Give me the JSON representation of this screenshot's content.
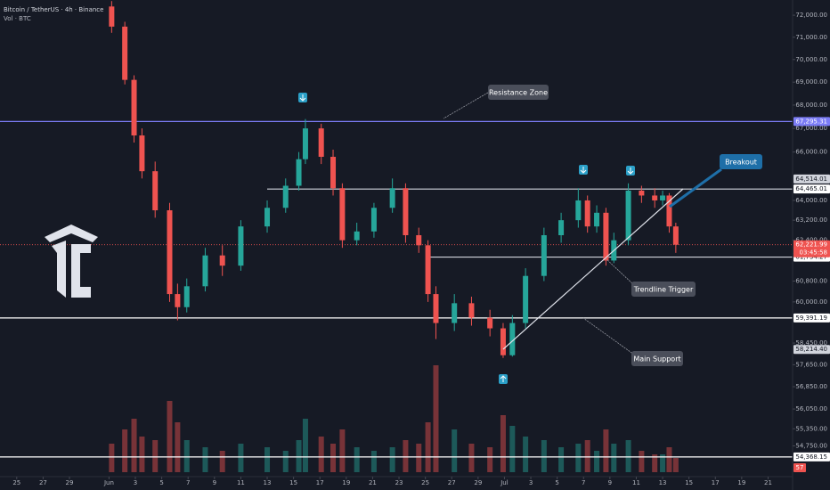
{
  "chart_data": {
    "type": "candlestick",
    "title": "Bitcoin / TetherUS · 4h · Binance",
    "subtitle": "Vol · BTC",
    "log_scale": true,
    "ylim": [
      53690,
      72700
    ],
    "yticks": [
      {
        "value": 72000,
        "label": "72,000.00"
      },
      {
        "value": 71000,
        "label": "71,000.00"
      },
      {
        "value": 70000,
        "label": "70,000.00"
      },
      {
        "value": 69000,
        "label": "69,000.00"
      },
      {
        "value": 68000,
        "label": "68,000.00"
      },
      {
        "value": 67000,
        "label": "67,000.00"
      },
      {
        "value": 66000,
        "label": "66,000.00"
      },
      {
        "value": 64000,
        "label": "64,000.00"
      },
      {
        "value": 63200,
        "label": "63,200.00"
      },
      {
        "value": 62400,
        "label": "62,400.00"
      },
      {
        "value": 60800,
        "label": "60,800.00"
      },
      {
        "value": 60000,
        "label": "60,000.00"
      },
      {
        "value": 58450,
        "label": "58,450.00"
      },
      {
        "value": 57650,
        "label": "57,650.00"
      },
      {
        "value": 56850,
        "label": "56,850.00"
      },
      {
        "value": 56050,
        "label": "56,050.00"
      },
      {
        "value": 55350,
        "label": "55,350.00"
      },
      {
        "value": 54750,
        "label": "54,750.00"
      }
    ],
    "xlim": [
      -0.27,
      59.86
    ],
    "xticks": [
      {
        "value": 1,
        "label": "25"
      },
      {
        "value": 3,
        "label": "27"
      },
      {
        "value": 5,
        "label": "29"
      },
      {
        "value": 8,
        "label": "Jun"
      },
      {
        "value": 10,
        "label": "3"
      },
      {
        "value": 12,
        "label": "5"
      },
      {
        "value": 14,
        "label": "7"
      },
      {
        "value": 16,
        "label": "9"
      },
      {
        "value": 18,
        "label": "11"
      },
      {
        "value": 20,
        "label": "13"
      },
      {
        "value": 22,
        "label": "15"
      },
      {
        "value": 24,
        "label": "17"
      },
      {
        "value": 26,
        "label": "19"
      },
      {
        "value": 28,
        "label": "21"
      },
      {
        "value": 30,
        "label": "23"
      },
      {
        "value": 32,
        "label": "25"
      },
      {
        "value": 34,
        "label": "27"
      },
      {
        "value": 36,
        "label": "29"
      },
      {
        "value": 38,
        "label": "Jul"
      },
      {
        "value": 40,
        "label": "3"
      },
      {
        "value": 42,
        "label": "5"
      },
      {
        "value": 44,
        "label": "7"
      },
      {
        "value": 46,
        "label": "9"
      },
      {
        "value": 48,
        "label": "11"
      },
      {
        "value": 50,
        "label": "13"
      },
      {
        "value": 52,
        "label": "15"
      },
      {
        "value": 54,
        "label": "17"
      },
      {
        "value": 56,
        "label": "19"
      },
      {
        "value": 58,
        "label": "21"
      }
    ],
    "x": [
      8.2,
      9.2,
      9.9,
      10.5,
      11.5,
      12.6,
      13.2,
      13.9,
      15.3,
      16.6,
      18,
      20,
      21.4,
      22.4,
      22.9,
      24.1,
      25,
      25.7,
      26.8,
      28.1,
      29.5,
      30.5,
      31.5,
      32.2,
      32.8,
      34.2,
      35.5,
      36.9,
      37.9,
      38.6,
      39.6,
      41,
      42.3,
      43.6,
      44.3,
      45,
      45.7,
      46.3,
      47.4,
      48.4,
      49.4,
      50,
      50.5,
      51
    ],
    "open": [
      72400,
      71480,
      69100,
      66700,
      65200,
      63600,
      60300,
      59800,
      60600,
      61800,
      61400,
      62950,
      63700,
      64600,
      65700,
      67000,
      65800,
      64500,
      62400,
      62750,
      63700,
      64500,
      62600,
      62200,
      60300,
      59200,
      59950,
      59400,
      59000,
      58000,
      59200,
      61000,
      62600,
      63200,
      64000,
      62950,
      63500,
      61600,
      62400,
      64400,
      64200,
      64000,
      64200,
      62950
    ],
    "high": [
      72650,
      71700,
      69300,
      67000,
      65600,
      63900,
      60700,
      60900,
      62100,
      62200,
      63200,
      64000,
      64900,
      66000,
      67400,
      67200,
      66100,
      64700,
      63100,
      63900,
      64900,
      64700,
      62900,
      62400,
      60600,
      60300,
      60200,
      59700,
      59200,
      59500,
      61300,
      62900,
      63500,
      64500,
      64200,
      63800,
      63700,
      62700,
      64700,
      64600,
      64500,
      64400,
      64300,
      63100
    ],
    "low": [
      71200,
      68900,
      66400,
      64900,
      63300,
      60000,
      59300,
      59600,
      60400,
      61000,
      61200,
      62700,
      63500,
      64400,
      65500,
      65500,
      64200,
      62100,
      62200,
      62500,
      63500,
      62300,
      61900,
      60000,
      58600,
      58900,
      59100,
      58700,
      57900,
      57950,
      59000,
      60800,
      62300,
      62900,
      62700,
      62700,
      61400,
      61500,
      62200,
      63900,
      63700,
      63800,
      62700,
      61900
    ],
    "close": [
      71480,
      69100,
      66700,
      65200,
      63600,
      60300,
      59800,
      60600,
      61800,
      61400,
      62950,
      63700,
      64600,
      65700,
      67000,
      65800,
      64500,
      62400,
      62750,
      63700,
      64500,
      62600,
      62200,
      60300,
      59200,
      59950,
      59400,
      59000,
      58000,
      59200,
      61000,
      62600,
      63200,
      64000,
      62950,
      63500,
      61600,
      62400,
      64400,
      64200,
      64000,
      64200,
      62950,
      62221.99
    ],
    "up_color": "#26a69a",
    "down_color": "#ef5350",
    "volume": {
      "ylim": [
        0,
        40000
      ],
      "values": [
        8000,
        12000,
        15000,
        10000,
        9000,
        20000,
        14000,
        9000,
        7000,
        6000,
        8000,
        7000,
        6000,
        9000,
        15000,
        10000,
        8000,
        12000,
        7000,
        6000,
        7000,
        9000,
        8000,
        14000,
        30000,
        12000,
        8000,
        7000,
        16000,
        13000,
        10000,
        9000,
        7000,
        8000,
        9000,
        6000,
        12000,
        8000,
        9000,
        6000,
        5000,
        5000,
        7000,
        4000
      ]
    },
    "levels": [
      {
        "value": 67295.31,
        "label": "67,295.31",
        "color": "#7b7cf5"
      },
      {
        "value": 64465.01,
        "label": "64,465.01",
        "color": "#d1d4dc"
      },
      {
        "value": 61734.27,
        "label": "61,734.27",
        "color": "#d1d4dc"
      },
      {
        "value": 59391.19,
        "label": "59,391.19",
        "color": "#ffffff"
      },
      {
        "value": 54368.15,
        "label": "54,368.15",
        "color": "#ffffff"
      }
    ],
    "price_tags": [
      {
        "value": 64514.01,
        "label": "64,514.01"
      },
      {
        "value": 58214.4,
        "label": "58,214.40"
      }
    ],
    "last_price": {
      "value": 62221.99,
      "label": "62,221.99"
    },
    "countdown": "03:45:58",
    "volume_tag": "57",
    "annotations": [
      "Resistance Zone",
      "Breakout",
      "Trendline Trigger",
      "Main Support"
    ]
  }
}
